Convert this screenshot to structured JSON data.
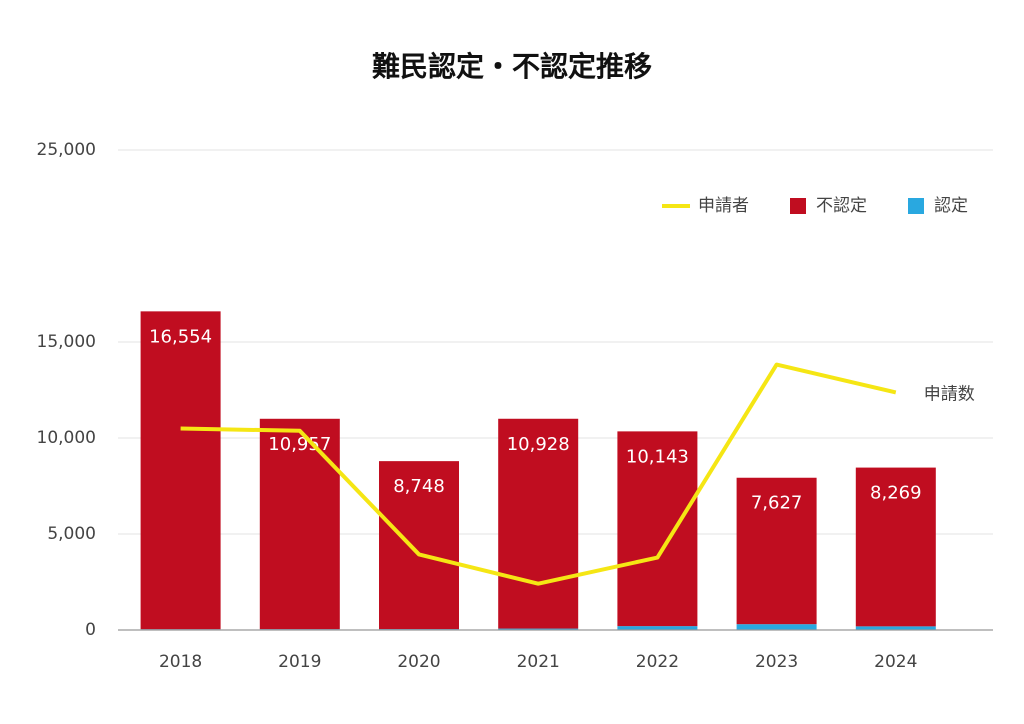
{
  "chart_data": {
    "type": "bar",
    "title": "難民認定・不認定推移",
    "categories": [
      "2018",
      "2019",
      "2020",
      "2021",
      "2022",
      "2023",
      "2024"
    ],
    "series": [
      {
        "name": "申請者",
        "type": "line",
        "color": "#f5e614",
        "values": [
          10493,
          10375,
          3936,
          2413,
          3772,
          13823,
          12373
        ]
      },
      {
        "name": "不認定",
        "type": "bar",
        "color": "#c00d20",
        "values": [
          16554,
          10957,
          8748,
          10928,
          10143,
          7627,
          8269
        ],
        "value_labels": [
          "16,554",
          "10,957",
          "8,748",
          "10,928",
          "10,143",
          "7,627",
          "8,269"
        ]
      },
      {
        "name": "認定",
        "type": "bar",
        "color": "#29a8e0",
        "values": [
          42,
          44,
          47,
          74,
          202,
          303,
          190
        ]
      }
    ],
    "annotation": "申請数",
    "ylim": [
      0,
      25000
    ],
    "yticks": [
      0,
      {
        "value": 5000,
        "label": "5,000"
      },
      {
        "value": 10000,
        "label": "10,000"
      },
      {
        "value": 15000,
        "label": "15,000"
      },
      {
        "value": 25000,
        "label": "25,000"
      }
    ],
    "grid": true,
    "legend": "top-right"
  }
}
